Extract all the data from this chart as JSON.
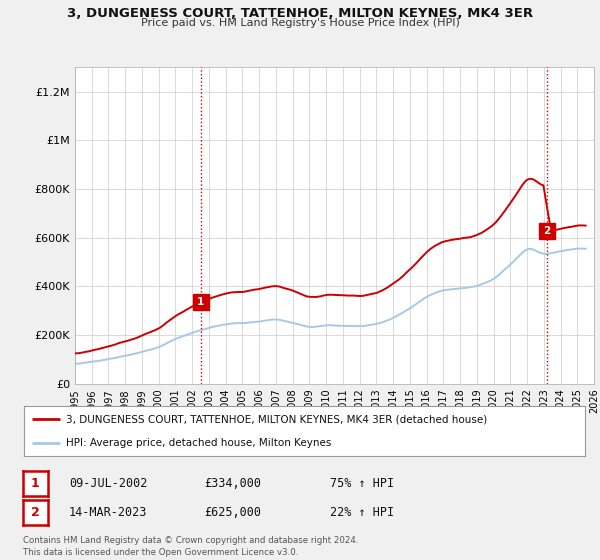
{
  "title": "3, DUNGENESS COURT, TATTENHOE, MILTON KEYNES, MK4 3ER",
  "subtitle": "Price paid vs. HM Land Registry's House Price Index (HPI)",
  "ylim": [
    0,
    1300000
  ],
  "yticks": [
    0,
    200000,
    400000,
    600000,
    800000,
    1000000,
    1200000
  ],
  "ytick_labels": [
    "£0",
    "£200K",
    "£400K",
    "£600K",
    "£800K",
    "£1M",
    "£1.2M"
  ],
  "hpi_color": "#a8c8e8",
  "price_color": "#cc0000",
  "marker1_x": 2002.52,
  "marker1_y": 334000,
  "marker1_label": "1",
  "marker2_x": 2023.19,
  "marker2_y": 625000,
  "marker2_label": "2",
  "vline_color": "#cc0000",
  "background_color": "#f0f0f0",
  "plot_bg_color": "#ffffff",
  "grid_color": "#cccccc",
  "legend_label_red": "3, DUNGENESS COURT, TATTENHOE, MILTON KEYNES, MK4 3ER (detached house)",
  "legend_label_blue": "HPI: Average price, detached house, Milton Keynes",
  "table_row1": [
    "1",
    "09-JUL-2002",
    "£334,000",
    "75% ↑ HPI"
  ],
  "table_row2": [
    "2",
    "14-MAR-2023",
    "£625,000",
    "22% ↑ HPI"
  ],
  "footer": "Contains HM Land Registry data © Crown copyright and database right 2024.\nThis data is licensed under the Open Government Licence v3.0.",
  "xmin": 1995,
  "xmax": 2026,
  "xticks": [
    1995,
    1996,
    1997,
    1998,
    1999,
    2000,
    2001,
    2002,
    2003,
    2004,
    2005,
    2006,
    2007,
    2008,
    2009,
    2010,
    2011,
    2012,
    2013,
    2014,
    2015,
    2016,
    2017,
    2018,
    2019,
    2020,
    2021,
    2022,
    2023,
    2024,
    2025,
    2026
  ]
}
